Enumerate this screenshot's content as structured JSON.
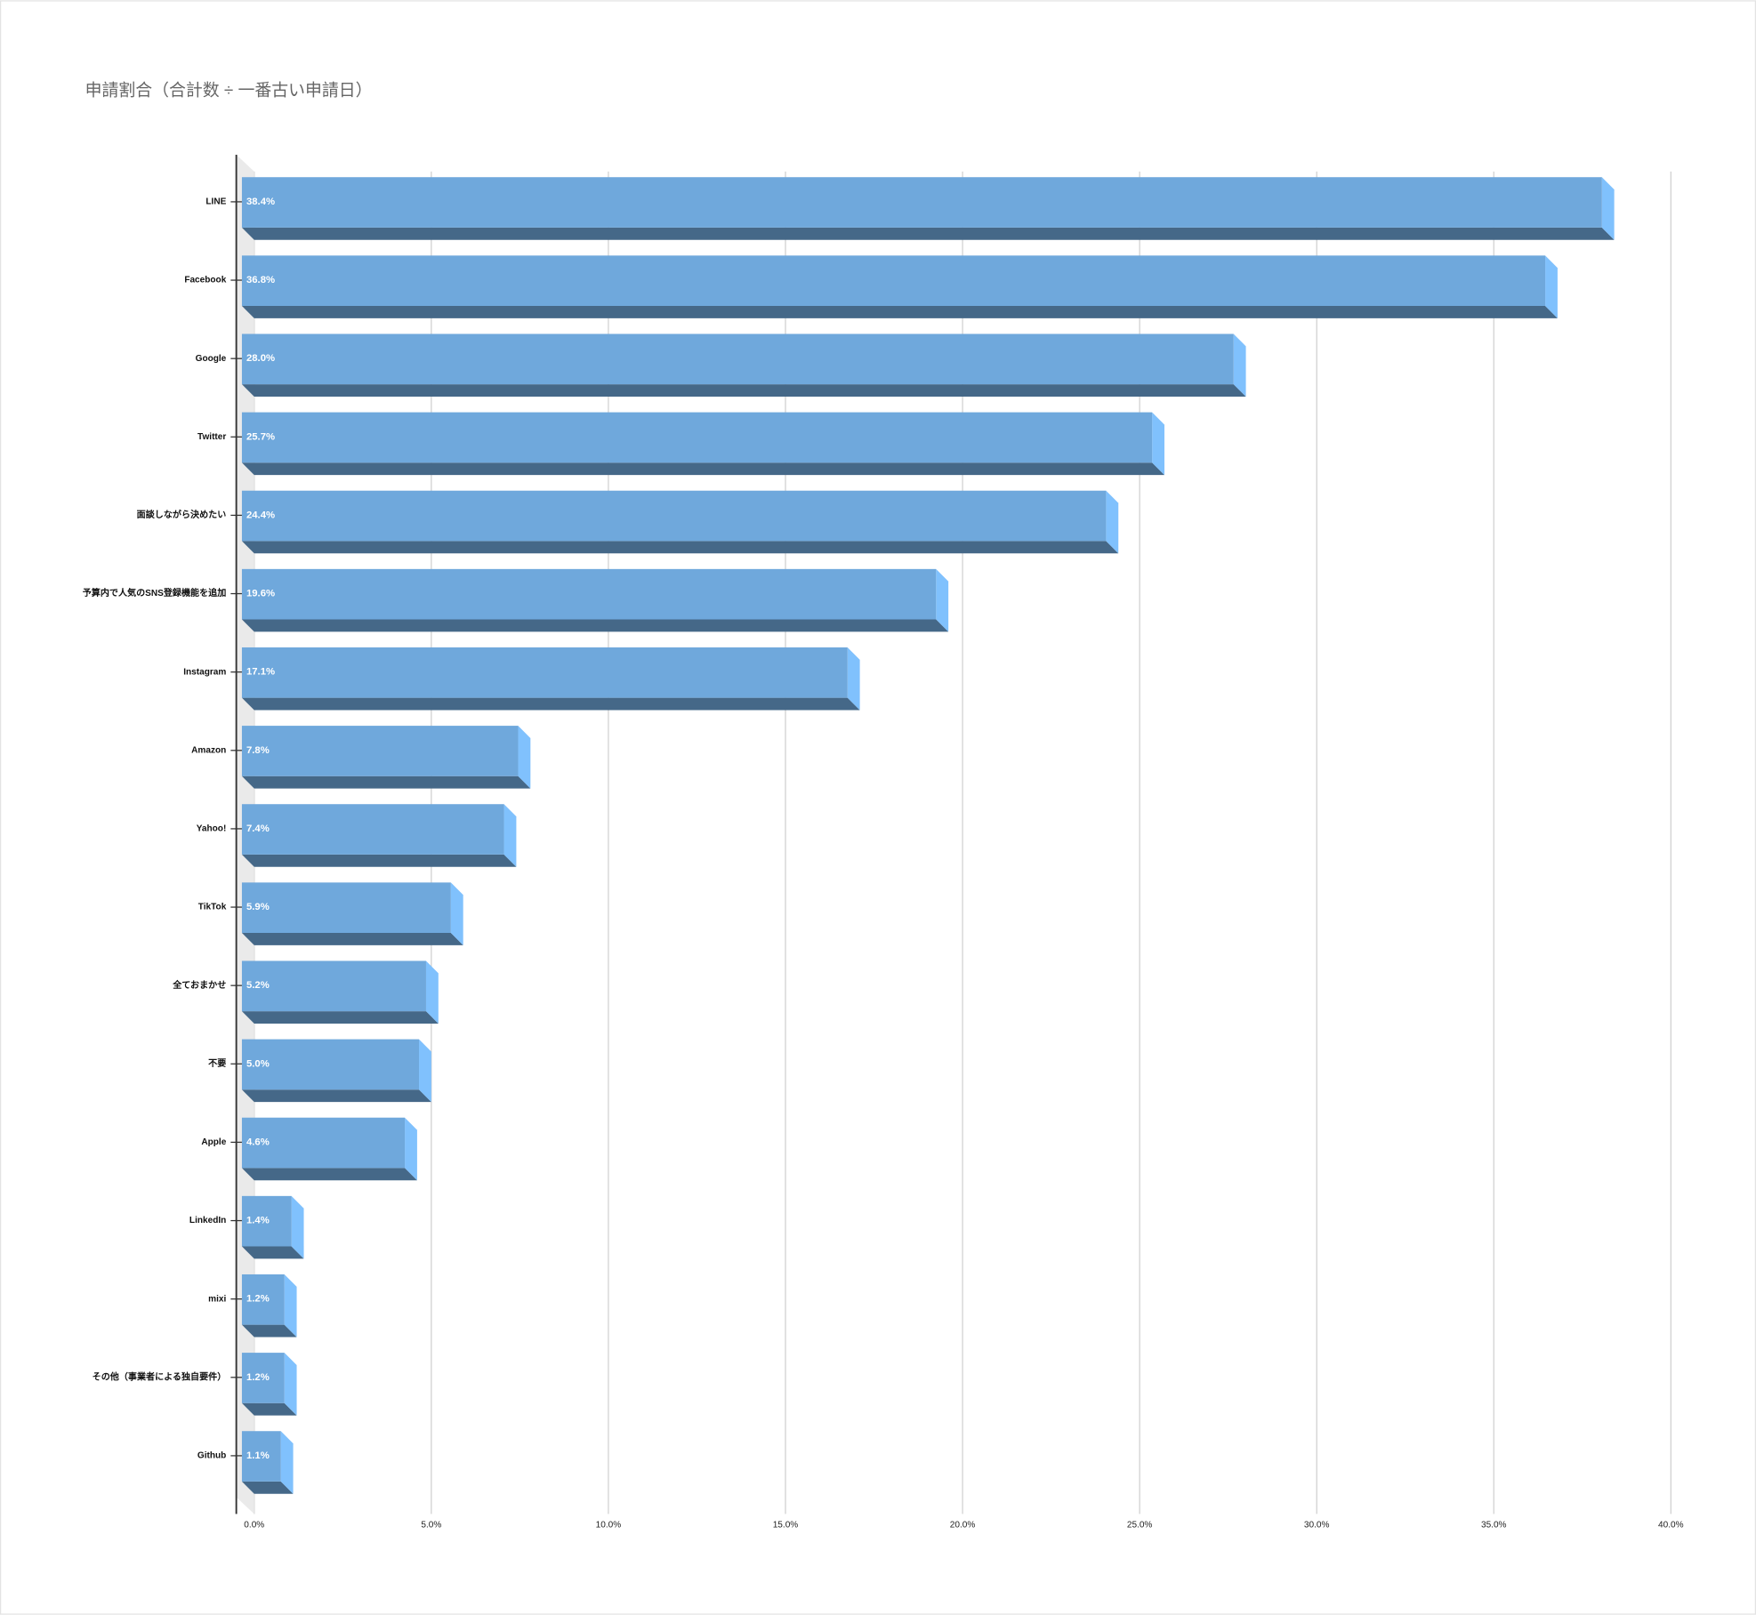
{
  "chart_data": {
    "type": "bar3d",
    "title": "申請割合（合計数 ÷ 一番古い申請日）",
    "categories": [
      "LINE",
      "Facebook",
      "Google",
      "Twitter",
      "面談しながら決めたい",
      "予算内で人気のSNS登録機能を追加",
      "Instagram",
      "Amazon",
      "Yahoo!",
      "TikTok",
      "全ておまかせ",
      "不要",
      "Apple",
      "LinkedIn",
      "mixi",
      "その他（事業者による独自要件）",
      "Github"
    ],
    "values": [
      38.4,
      36.8,
      28.0,
      25.7,
      24.4,
      19.6,
      17.1,
      7.8,
      7.4,
      5.9,
      5.2,
      5.0,
      4.6,
      1.4,
      1.2,
      1.2,
      1.1
    ],
    "value_labels": [
      "38.4%",
      "36.8%",
      "28.0%",
      "25.7%",
      "24.4%",
      "19.6%",
      "17.1%",
      "7.8%",
      "7.4%",
      "5.9%",
      "5.2%",
      "5.0%",
      "4.6%",
      "1.4%",
      "1.2%",
      "1.2%",
      "1.1%"
    ],
    "color": "#6fa8dc",
    "xlim": [
      0,
      40
    ],
    "xticks": [
      {
        "value": 0,
        "label": "0.0%"
      },
      {
        "value": 5,
        "label": "5.0%"
      },
      {
        "value": 10,
        "label": "10.0%"
      },
      {
        "value": 15,
        "label": "15.0%"
      },
      {
        "value": 20,
        "label": "20.0%"
      },
      {
        "value": 25,
        "label": "25.0%"
      },
      {
        "value": 30,
        "label": "30.0%"
      },
      {
        "value": 35,
        "label": "35.0%"
      },
      {
        "value": 40,
        "label": "40.0%"
      }
    ],
    "grid": true
  }
}
